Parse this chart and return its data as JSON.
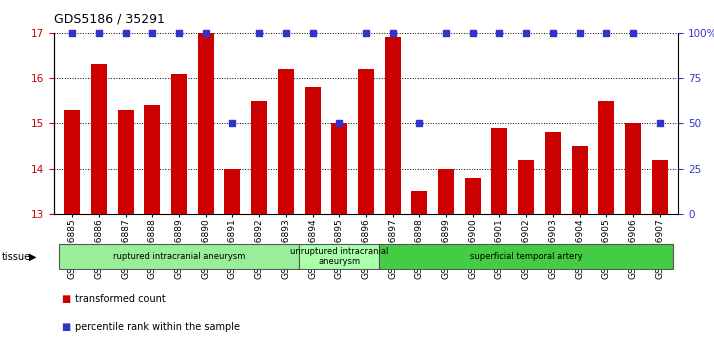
{
  "title": "GDS5186 / 35291",
  "samples": [
    "GSM1306885",
    "GSM1306886",
    "GSM1306887",
    "GSM1306888",
    "GSM1306889",
    "GSM1306890",
    "GSM1306891",
    "GSM1306892",
    "GSM1306893",
    "GSM1306894",
    "GSM1306895",
    "GSM1306896",
    "GSM1306897",
    "GSM1306898",
    "GSM1306899",
    "GSM1306900",
    "GSM1306901",
    "GSM1306902",
    "GSM1306903",
    "GSM1306904",
    "GSM1306905",
    "GSM1306906",
    "GSM1306907"
  ],
  "bar_values": [
    15.3,
    16.3,
    15.3,
    15.4,
    16.1,
    17.0,
    14.0,
    15.5,
    16.2,
    15.8,
    15.0,
    16.2,
    16.9,
    13.5,
    14.0,
    13.8,
    14.9,
    14.2,
    14.8,
    14.5,
    15.5,
    15.0,
    14.2
  ],
  "percentile_values": [
    100,
    100,
    100,
    100,
    100,
    100,
    50,
    100,
    100,
    100,
    50,
    100,
    100,
    50,
    100,
    100,
    100,
    100,
    100,
    100,
    100,
    100,
    50
  ],
  "ylim_left": [
    13,
    17
  ],
  "ylim_right": [
    0,
    100
  ],
  "yticks_left": [
    13,
    14,
    15,
    16,
    17
  ],
  "yticks_right": [
    0,
    25,
    50,
    75,
    100
  ],
  "bar_color": "#CC0000",
  "dot_color": "#3333CC",
  "plot_bg_color": "#FFFFFF",
  "groups": [
    {
      "label": "ruptured intracranial aneurysm",
      "start": 0,
      "end": 8,
      "color": "#99EE99"
    },
    {
      "label": "unruptured intracranial\naneurysm",
      "start": 9,
      "end": 11,
      "color": "#AAFFAA"
    },
    {
      "label": "superficial temporal artery",
      "start": 12,
      "end": 22,
      "color": "#44CC44"
    }
  ],
  "legend_items": [
    {
      "label": "transformed count",
      "color": "#CC0000"
    },
    {
      "label": "percentile rank within the sample",
      "color": "#3333CC"
    }
  ],
  "tissue_label": "tissue",
  "xlabel_fontsize": 6.5,
  "title_fontsize": 9,
  "tick_fontsize": 7.5
}
